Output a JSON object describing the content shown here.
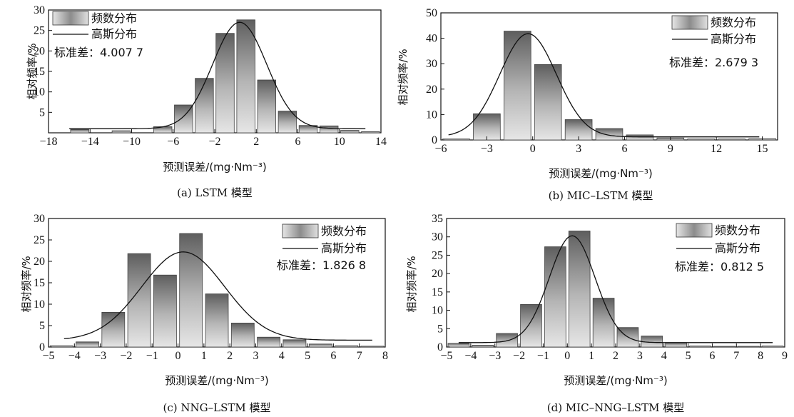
{
  "chart_data": [
    {
      "type": "bar",
      "caption": "(a) LSTM 模型",
      "xlabel": "预测误差/(mg·Nm⁻³)",
      "ylabel": "相对频率/%",
      "xlim": [
        -18,
        14
      ],
      "ylim": [
        0,
        30
      ],
      "xticks": [
        -18,
        -14,
        -10,
        -6,
        -2,
        2,
        6,
        10,
        14
      ],
      "yticks": [
        5,
        10,
        15,
        20,
        25,
        30
      ],
      "bin_width": 2,
      "bins": [
        {
          "x": -15,
          "y": 0.8
        },
        {
          "x": -11,
          "y": 0.5
        },
        {
          "x": -7,
          "y": 1.5
        },
        {
          "x": -5,
          "y": 6.8
        },
        {
          "x": -3,
          "y": 13.3
        },
        {
          "x": -1,
          "y": 24.3
        },
        {
          "x": 1,
          "y": 27.6
        },
        {
          "x": 3,
          "y": 12.9
        },
        {
          "x": 5,
          "y": 5.3
        },
        {
          "x": 7,
          "y": 1.8
        },
        {
          "x": 9,
          "y": 1.7
        },
        {
          "x": 11,
          "y": 0.6
        },
        {
          "x": 13,
          "y": 0.3
        }
      ],
      "gauss": {
        "mu": 0.4,
        "sigma": 2.6,
        "peak": 27.0,
        "base": 1.0,
        "x_range": [
          -16,
          12.5
        ]
      },
      "series": [
        {
          "name": "频数分布",
          "kind": "bar"
        },
        {
          "name": "高斯分布",
          "kind": "line"
        }
      ],
      "annotation": "标准差：4.007 7",
      "legend_position": "top-left"
    },
    {
      "type": "bar",
      "caption": "(b) MIC–LSTM 模型",
      "xlabel": "预测误差/(mg·Nm⁻³)",
      "ylabel": "相对频率/%",
      "xlim": [
        -6,
        16
      ],
      "ylim": [
        0,
        50
      ],
      "xticks": [
        -6,
        -3,
        0,
        3,
        6,
        9,
        12,
        15
      ],
      "yticks": [
        0,
        10,
        20,
        30,
        40,
        50
      ],
      "bin_width": 2,
      "bins": [
        {
          "x": -5,
          "y": 0.4
        },
        {
          "x": -3,
          "y": 10.3
        },
        {
          "x": -1,
          "y": 42.8
        },
        {
          "x": 1,
          "y": 29.7
        },
        {
          "x": 3,
          "y": 8.0
        },
        {
          "x": 5,
          "y": 4.5
        },
        {
          "x": 7,
          "y": 2.0
        },
        {
          "x": 9,
          "y": 0.8
        },
        {
          "x": 11,
          "y": 0.4
        },
        {
          "x": 13,
          "y": 0.4
        },
        {
          "x": 15,
          "y": 0.5
        }
      ],
      "gauss": {
        "mu": -0.3,
        "sigma": 1.85,
        "peak": 41.8,
        "base": 1.2,
        "x_range": [
          -5.5,
          14.8
        ]
      },
      "series": [
        {
          "name": "频数分布",
          "kind": "bar"
        },
        {
          "name": "高斯分布",
          "kind": "line"
        }
      ],
      "annotation": "标准差：2.679 3",
      "legend_position": "top-right"
    },
    {
      "type": "bar",
      "caption": "(c) NNG–LSTM 模型",
      "xlabel": "预测误差/(mg·Nm⁻³)",
      "ylabel": "相对频率/%",
      "xlim": [
        -5,
        8
      ],
      "ylim": [
        0,
        30
      ],
      "xticks": [
        -5,
        -4,
        -3,
        -2,
        -1,
        0,
        1,
        2,
        3,
        4,
        5,
        6,
        7,
        8
      ],
      "yticks": [
        0,
        5,
        10,
        15,
        20,
        25,
        30
      ],
      "bin_width": 1,
      "bins": [
        {
          "x": -4.5,
          "y": 0.3
        },
        {
          "x": -3.5,
          "y": 1.2
        },
        {
          "x": -2.5,
          "y": 8.1
        },
        {
          "x": -1.5,
          "y": 21.8
        },
        {
          "x": -0.5,
          "y": 16.8
        },
        {
          "x": 0.5,
          "y": 26.5
        },
        {
          "x": 1.5,
          "y": 12.4
        },
        {
          "x": 2.5,
          "y": 5.6
        },
        {
          "x": 3.5,
          "y": 2.3
        },
        {
          "x": 4.5,
          "y": 1.7
        },
        {
          "x": 5.5,
          "y": 0.7
        },
        {
          "x": 6.5,
          "y": 0.3
        },
        {
          "x": 7.5,
          "y": 0.2
        }
      ],
      "gauss": {
        "mu": 0.2,
        "sigma": 1.6,
        "peak": 22.2,
        "base": 1.6,
        "x_range": [
          -4.4,
          7.5
        ]
      },
      "series": [
        {
          "name": "频数分布",
          "kind": "bar"
        },
        {
          "name": "高斯分布",
          "kind": "line"
        }
      ],
      "annotation": "标准差：1.826 8",
      "legend_position": "top-right"
    },
    {
      "type": "bar",
      "caption": "(d) MIC–NNG–LSTM 模型",
      "xlabel": "预测误差/(mg·Nm⁻³)",
      "ylabel": "相对频率/%",
      "xlim": [
        -5,
        9
      ],
      "ylim": [
        0,
        35
      ],
      "xticks": [
        -5,
        -4,
        -3,
        -2,
        -1,
        0,
        1,
        2,
        3,
        4,
        5,
        6,
        7,
        8,
        9
      ],
      "yticks": [
        0,
        5,
        10,
        15,
        20,
        25,
        30,
        35
      ],
      "bin_width": 1,
      "bins": [
        {
          "x": -4.5,
          "y": 1.0
        },
        {
          "x": -3.5,
          "y": 0.5
        },
        {
          "x": -2.5,
          "y": 3.7
        },
        {
          "x": -1.5,
          "y": 11.6
        },
        {
          "x": -0.5,
          "y": 27.3
        },
        {
          "x": 0.5,
          "y": 31.6
        },
        {
          "x": 1.5,
          "y": 13.3
        },
        {
          "x": 2.5,
          "y": 5.3
        },
        {
          "x": 3.5,
          "y": 3.0
        },
        {
          "x": 4.5,
          "y": 1.2
        },
        {
          "x": 5.5,
          "y": 0.3
        },
        {
          "x": 6.5,
          "y": 0.2
        },
        {
          "x": 7.5,
          "y": 0.2
        },
        {
          "x": 8.5,
          "y": 0.3
        }
      ],
      "gauss": {
        "mu": 0.2,
        "sigma": 0.95,
        "peak": 30.3,
        "base": 1.2,
        "x_range": [
          -4.5,
          8.5
        ]
      },
      "series": [
        {
          "name": "频数分布",
          "kind": "bar"
        },
        {
          "name": "高斯分布",
          "kind": "line"
        }
      ],
      "annotation": "标准差：0.812 5",
      "legend_position": "top-right"
    }
  ]
}
